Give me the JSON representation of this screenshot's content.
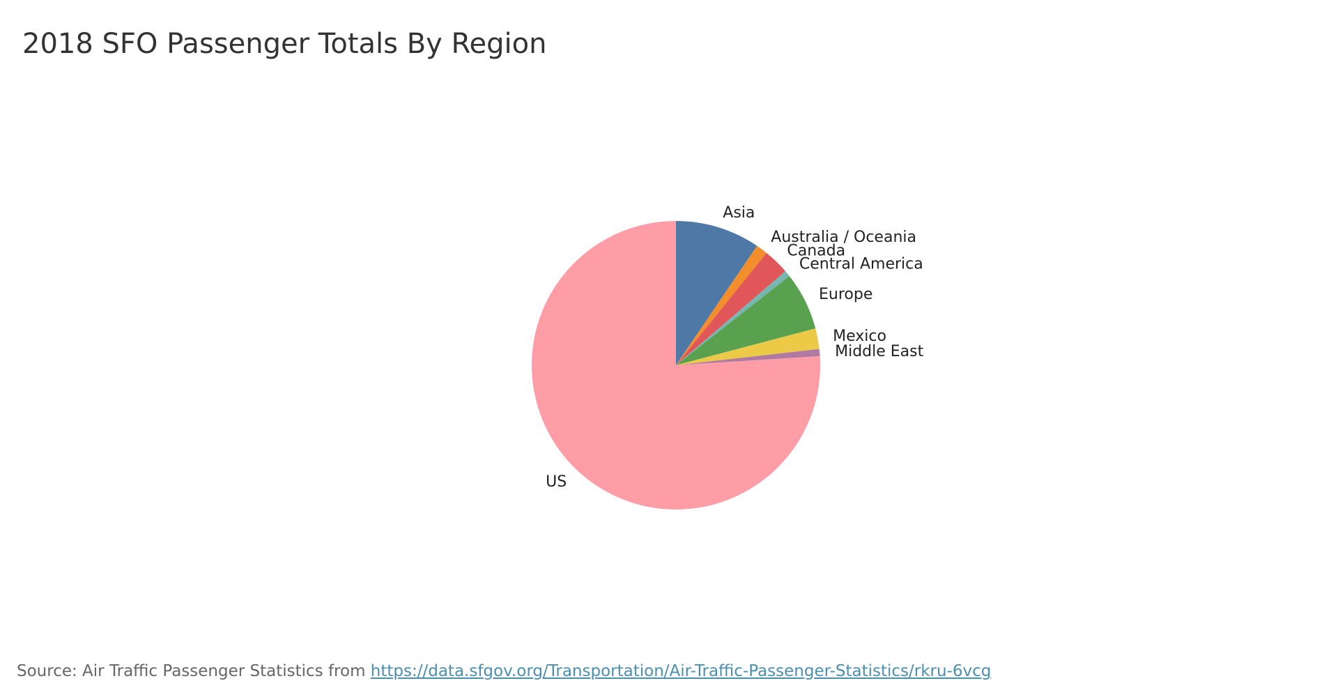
{
  "chart_data": {
    "type": "pie",
    "title": "2018 SFO Passenger Totals By Region",
    "start_angle_deg": 0,
    "direction": "clockwise",
    "slices": [
      {
        "label": "Asia",
        "value": 9.5,
        "color": "#4e79a7"
      },
      {
        "label": "Australia / Oceania",
        "value": 1.3,
        "color": "#f28e2b"
      },
      {
        "label": "Canada",
        "value": 2.9,
        "color": "#e15759"
      },
      {
        "label": "Central America",
        "value": 0.7,
        "color": "#76b7b2"
      },
      {
        "label": "Europe",
        "value": 6.5,
        "color": "#59a14f"
      },
      {
        "label": "Mexico",
        "value": 2.3,
        "color": "#edc948"
      },
      {
        "label": "Middle East",
        "value": 0.8,
        "color": "#b07aa1"
      },
      {
        "label": "US",
        "value": 76.0,
        "color": "#ff9da7"
      }
    ]
  },
  "source": {
    "prefix": "Source: Air Traffic Passenger Statistics from ",
    "link_text": "https://data.sfgov.org/Transportation/Air-Traffic-Passenger-Statistics/rkru-6vcg"
  }
}
